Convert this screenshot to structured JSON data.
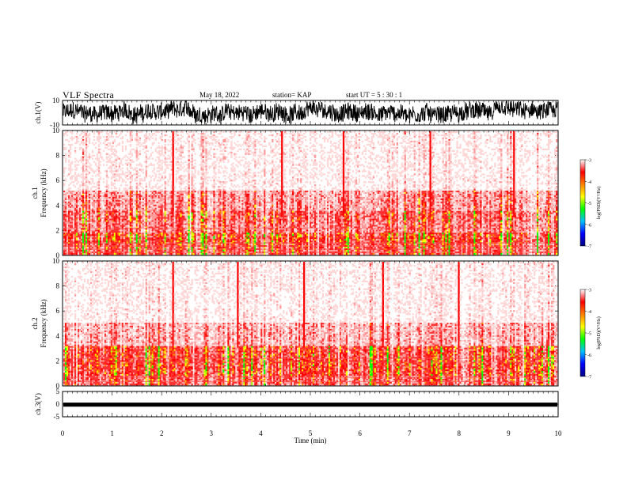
{
  "header": {
    "title": "VLF Spectra",
    "date": "May 18, 2022",
    "station": "station= KAP",
    "start_ut": "start  UT =   5 : 30 : 1"
  },
  "colorbar": {
    "label": "log(PSD)(V²/Hz)",
    "ticks": [
      "-3",
      "-4",
      "-5",
      "-6",
      "-7"
    ],
    "colors": [
      "#000080",
      "#0000ff",
      "#00c0ff",
      "#00ff00",
      "#ffff00",
      "#ff8000",
      "#ff0000",
      "#ffffff"
    ]
  },
  "chart_data": [
    {
      "type": "line",
      "name": "ch1-waveform",
      "ylabel": "ch.1(V)",
      "ylim": [
        -10,
        10
      ],
      "yticks": [
        "10",
        "-10"
      ],
      "xlim": [
        0,
        10
      ]
    },
    {
      "type": "heatmap",
      "name": "ch1-spectrogram",
      "ylabel": "ch.1\nFrequency (kHz)",
      "ylim": [
        0,
        10
      ],
      "yticks": [
        "0",
        "2",
        "4",
        "6",
        "8",
        "10"
      ],
      "xlim": [
        0,
        10
      ],
      "zlim": [
        -7,
        -3
      ]
    },
    {
      "type": "heatmap",
      "name": "ch2-spectrogram",
      "ylabel": "ch.2\nFrequency (kHz)",
      "ylim": [
        0,
        10
      ],
      "yticks": [
        "0",
        "2",
        "4",
        "6",
        "8",
        "10"
      ],
      "xlim": [
        0,
        10
      ],
      "zlim": [
        -7,
        -3
      ]
    },
    {
      "type": "line",
      "name": "ch3-waveform",
      "ylabel": "ch.3(V)",
      "ylim": [
        -5,
        5
      ],
      "yticks": [
        "5",
        "0",
        "-5"
      ],
      "xlim": [
        0,
        10
      ],
      "xlabel": "Time  (min)",
      "xticks": [
        "0",
        "1",
        "2",
        "3",
        "4",
        "5",
        "6",
        "7",
        "8",
        "9",
        "10"
      ]
    }
  ]
}
